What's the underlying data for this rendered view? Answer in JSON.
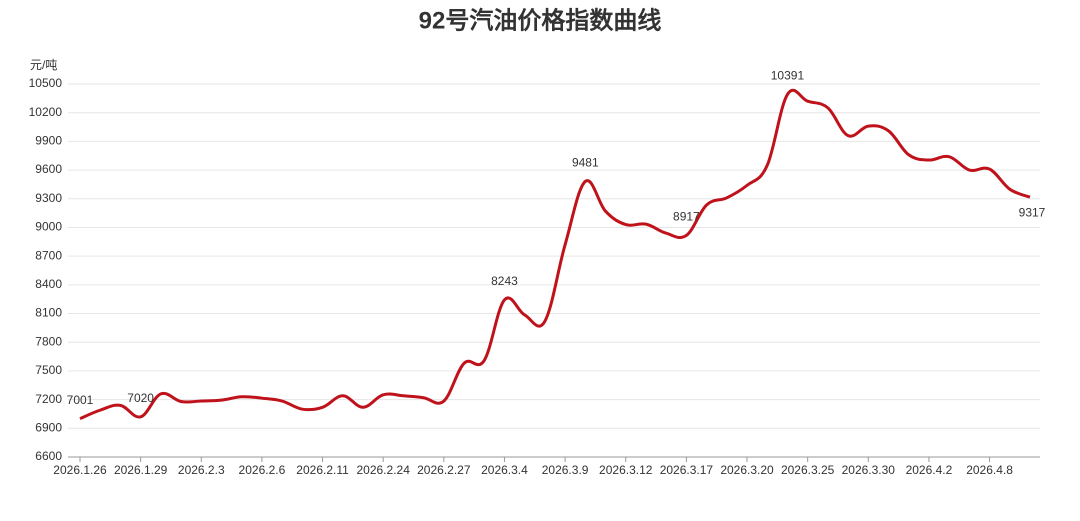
{
  "chart_data": {
    "type": "line",
    "title": "92号汽油价格指数曲线",
    "y_label": "元/吨",
    "categories": [
      "2026.1.26",
      null,
      null,
      "2026.1.29",
      null,
      null,
      "2026.2.3",
      null,
      null,
      "2026.2.6",
      null,
      null,
      "2026.2.11",
      null,
      null,
      "2026.2.24",
      null,
      null,
      "2026.2.27",
      null,
      null,
      "2026.3.4",
      null,
      null,
      "2026.3.9",
      null,
      null,
      "2026.3.12",
      null,
      null,
      "2026.3.17",
      null,
      null,
      "2026.3.20",
      null,
      null,
      "2026.3.25",
      null,
      null,
      "2026.3.30",
      null,
      null,
      "2026.4.2",
      null,
      null,
      "2026.4.8",
      null,
      null
    ],
    "series": [
      {
        "name": "92号汽油",
        "color": "#c0121b",
        "values": [
          7001,
          7090,
          7140,
          7020,
          7260,
          7180,
          7185,
          7195,
          7230,
          7215,
          7185,
          7100,
          7120,
          7240,
          7120,
          7250,
          7240,
          7220,
          7185,
          7580,
          7610,
          8243,
          8085,
          8020,
          8820,
          9481,
          9170,
          9030,
          9035,
          8940,
          8917,
          9235,
          9310,
          9440,
          9650,
          10391,
          10320,
          10250,
          9960,
          10060,
          10010,
          9760,
          9705,
          9740,
          9600,
          9610,
          9400,
          9317
        ],
        "value_labels": [
          "7001",
          null,
          null,
          "7020",
          null,
          null,
          null,
          null,
          null,
          null,
          null,
          null,
          null,
          null,
          null,
          null,
          null,
          null,
          null,
          null,
          null,
          "8243",
          null,
          null,
          null,
          "9481",
          null,
          null,
          null,
          null,
          "8917",
          null,
          null,
          null,
          null,
          "10391",
          null,
          null,
          null,
          null,
          null,
          null,
          null,
          null,
          null,
          null,
          null,
          "9317"
        ]
      }
    ],
    "ylim": [
      6600,
      10500
    ],
    "yticks": [
      6600,
      6900,
      7200,
      7500,
      7800,
      8100,
      8400,
      8700,
      9000,
      9300,
      9600,
      9900,
      10200,
      10500
    ],
    "grid": true
  }
}
